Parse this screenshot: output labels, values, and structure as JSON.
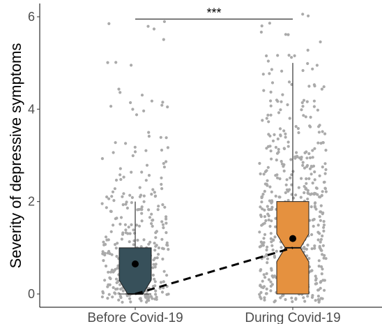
{
  "chart_data": {
    "type": "boxplot",
    "title": "",
    "xlabel": "",
    "ylabel": "Severity of depressive symptoms",
    "ylim": [
      -0.15,
      6.2
    ],
    "yticks": [
      0,
      2,
      4,
      6
    ],
    "grid": false,
    "categories": [
      "Before Covid-19",
      "During Covid-19"
    ],
    "boxes": [
      {
        "name": "Before Covid-19",
        "min": 0,
        "q1": 0,
        "median": 0,
        "q3": 1,
        "max": 2,
        "mean": 0.65,
        "color": "#37505a"
      },
      {
        "name": "During Covid-19",
        "min": 0,
        "q1": 0,
        "median": 1,
        "q3": 2,
        "max": 5,
        "mean": 1.2,
        "color": "#e5913f"
      }
    ],
    "jitter_color": "#aaaaaa",
    "trend_line": {
      "style": "dashed",
      "from": {
        "category": "Before Covid-19",
        "y": 0
      },
      "to": {
        "category": "During Covid-19",
        "y": 1
      }
    },
    "significance": {
      "label": "***",
      "from": "Before Covid-19",
      "to": "During Covid-19",
      "y": 5.95
    }
  }
}
